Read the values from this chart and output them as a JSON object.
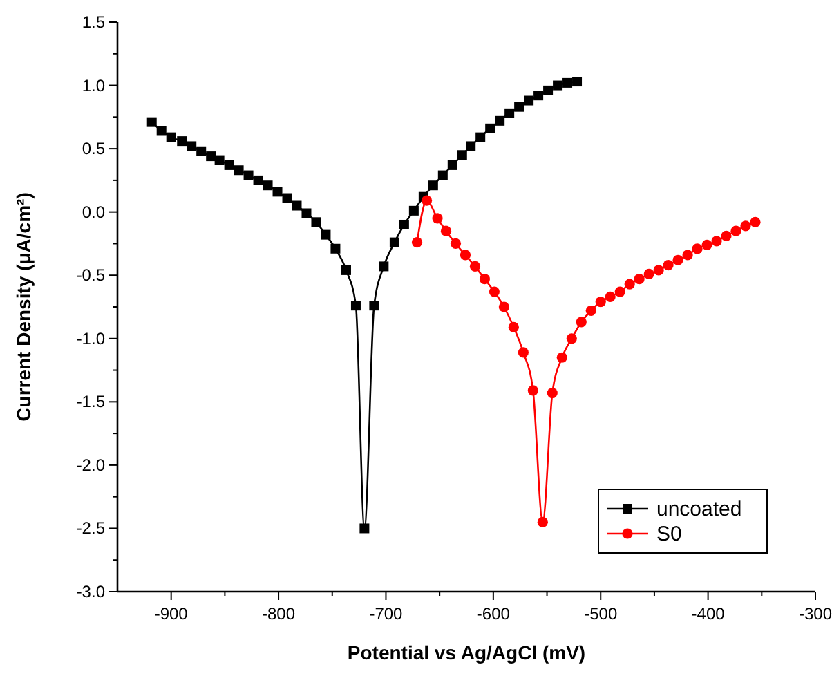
{
  "chart_data": {
    "type": "line",
    "xlabel": "Potential vs Ag/AgCl (mV)",
    "ylabel": "Current Density (μA/cm²)",
    "xlim": [
      -950,
      -300
    ],
    "ylim": [
      -3.0,
      1.5
    ],
    "xticks": [
      -900,
      {
        "value": -850,
        "label": null
      },
      -800,
      {
        "value": -750,
        "label": null
      },
      -700,
      {
        "value": -650,
        "label": null
      },
      -600,
      {
        "value": -550,
        "label": null
      },
      -500,
      {
        "value": -450,
        "label": null
      },
      -400,
      {
        "value": -350,
        "label": null
      },
      -300
    ],
    "yticks": [
      {
        "value": -3.0,
        "label": "-3.0"
      },
      {
        "value": -2.75,
        "label": null
      },
      {
        "value": -2.5,
        "label": "-2.5"
      },
      {
        "value": -2.25,
        "label": null
      },
      {
        "value": -2.0,
        "label": "-2.0"
      },
      {
        "value": -1.75,
        "label": null
      },
      {
        "value": -1.5,
        "label": "-1.5"
      },
      {
        "value": -1.25,
        "label": null
      },
      {
        "value": -1.0,
        "label": "-1.0"
      },
      {
        "value": -0.75,
        "label": null
      },
      {
        "value": -0.5,
        "label": "-0.5"
      },
      {
        "value": -0.25,
        "label": null
      },
      {
        "value": 0.0,
        "label": "0.0"
      },
      {
        "value": 0.25,
        "label": null
      },
      {
        "value": 0.5,
        "label": "0.5"
      },
      {
        "value": 0.75,
        "label": null
      },
      {
        "value": 1.0,
        "label": "1.0"
      },
      {
        "value": 1.25,
        "label": null
      },
      {
        "value": 1.5,
        "label": "1.5"
      }
    ],
    "legend": "bottom right",
    "series": [
      {
        "name": "uncoated",
        "color": "#000000",
        "marker": "square",
        "x": [
          -918,
          -909,
          -900,
          -890,
          -881,
          -872,
          -863,
          -855,
          -846,
          -837,
          -828,
          -819,
          -810,
          -801,
          -792,
          -783,
          -774,
          -765,
          -756,
          -747,
          -737,
          -728,
          -720,
          -711,
          -702,
          -692,
          -683,
          -674,
          -665,
          -656,
          -647,
          -638,
          -629,
          -621,
          -612,
          -603,
          -594,
          -585,
          -576,
          -567,
          -558,
          -549,
          -540,
          -531,
          -522
        ],
        "values": [
          0.71,
          0.64,
          0.59,
          0.56,
          0.52,
          0.48,
          0.44,
          0.41,
          0.37,
          0.33,
          0.29,
          0.25,
          0.21,
          0.16,
          0.11,
          0.05,
          -0.01,
          -0.08,
          -0.18,
          -0.29,
          -0.46,
          -0.74,
          -2.5,
          -0.74,
          -0.43,
          -0.24,
          -0.1,
          0.01,
          0.12,
          0.21,
          0.29,
          0.37,
          0.45,
          0.52,
          0.59,
          0.66,
          0.72,
          0.78,
          0.83,
          0.88,
          0.92,
          0.96,
          1.0,
          1.02,
          1.03
        ]
      },
      {
        "name": "S0",
        "color": "#ff0000",
        "marker": "circle",
        "x": [
          -671,
          -662,
          -652,
          -644,
          -635,
          -626,
          -617,
          -608,
          -599,
          -590,
          -581,
          -572,
          -563,
          -554,
          -545,
          -536,
          -527,
          -518,
          -509,
          -500,
          -491,
          -482,
          -473,
          -464,
          -455,
          -446,
          -437,
          -428,
          -419,
          -410,
          -401,
          -392,
          -383,
          -374,
          -365,
          -356
        ],
        "values": [
          -0.24,
          0.09,
          -0.05,
          -0.15,
          -0.25,
          -0.34,
          -0.43,
          -0.53,
          -0.63,
          -0.75,
          -0.91,
          -1.11,
          -1.41,
          -2.45,
          -1.43,
          -1.15,
          -1.0,
          -0.87,
          -0.78,
          -0.71,
          -0.67,
          -0.63,
          -0.57,
          -0.53,
          -0.49,
          -0.46,
          -0.42,
          -0.38,
          -0.34,
          -0.29,
          -0.26,
          -0.23,
          -0.19,
          -0.15,
          -0.11,
          -0.08
        ]
      }
    ]
  }
}
